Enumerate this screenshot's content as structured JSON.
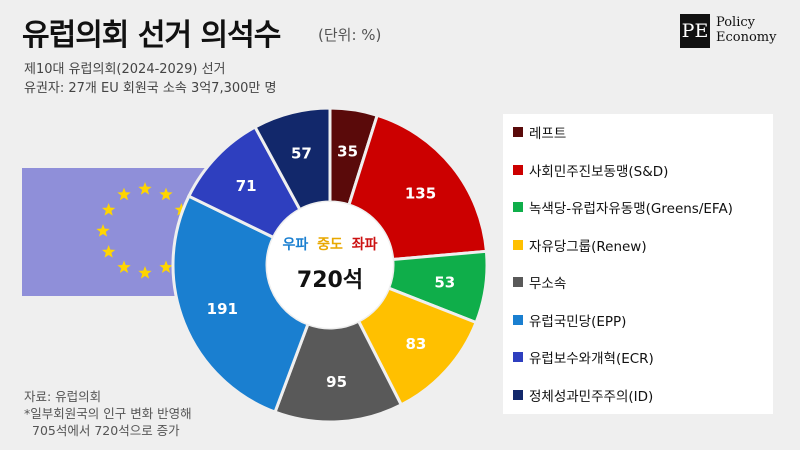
{
  "header": {
    "title": "유럽의회 선거 의석수",
    "unit": "(단위: %)",
    "subtitle1": "제10대 유럽의회(2024-2029) 선거",
    "subtitle2": "유권자: 27개 EU 회원국 소속 3억7,300만 명"
  },
  "logo": {
    "mark": "PE",
    "line1": "Policy",
    "line2": "Economy"
  },
  "center": {
    "left": "우파",
    "mid": "중도",
    "right": "좌파",
    "total": "720석",
    "left_color": "#1a7fd0",
    "mid_color": "#e8a800",
    "right_color": "#cc1111"
  },
  "footer": {
    "source": "자료: 유럽의회",
    "note1": "*일부회원국의 인구 변화 반영해",
    "note2": "705석에서 720석으로 증가"
  },
  "chart_data": {
    "type": "pie",
    "categories": [
      "레프트",
      "사회민주진보동맹(S&D)",
      "녹색당-유럽자유동맹(Greens/EFA)",
      "자유당그룹(Renew)",
      "무소속",
      "유럽국민당(EPP)",
      "유럽보수와개혁(ECR)",
      "정체성과민주주의(ID)"
    ],
    "values": [
      35,
      135,
      53,
      83,
      95,
      191,
      71,
      57
    ],
    "colors": [
      "#5a0a0a",
      "#cc0000",
      "#0fae4a",
      "#ffc000",
      "#595959",
      "#1a7fd0",
      "#2e3fbf",
      "#12286b"
    ],
    "legend_position": "right",
    "total": 720
  }
}
